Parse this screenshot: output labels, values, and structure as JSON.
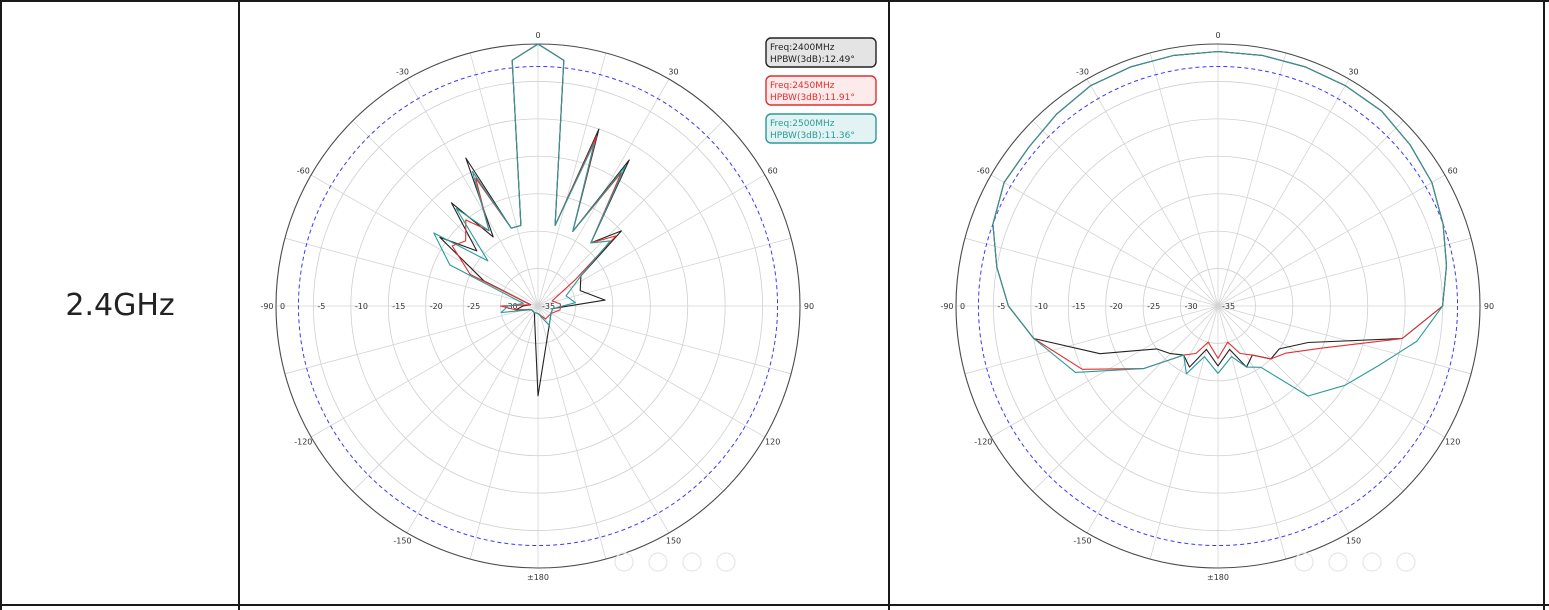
{
  "row_label": "2.4GHz",
  "colors": {
    "s2400": "#222222",
    "s2450": "#e03030",
    "s2500": "#2a9a9a",
    "ref": "#3a3aff",
    "legend_bg_2400": "#e4e4e4",
    "legend_bg_2450": "#fdeaea",
    "legend_bg_2500": "#e3f3f3"
  },
  "chart_data": [
    {
      "type": "polar",
      "angle_labels": [
        "0",
        "30",
        "60",
        "90",
        "120",
        "150",
        "±180",
        "-150",
        "-120",
        "-90",
        "-60",
        "-30"
      ],
      "radial_ticks": [
        "0",
        "-5",
        "-10",
        "-15",
        "-20",
        "-25",
        "-30",
        "-35"
      ],
      "rlim": [
        -35,
        0
      ],
      "reference_level": -3,
      "legend": [
        {
          "line1": "Freq:2400MHz",
          "line2": "HPBW(3dB):12.49°",
          "color_key": "s2400"
        },
        {
          "line1": "Freq:2450MHz",
          "line2": "HPBW(3dB):11.91°",
          "color_key": "s2450"
        },
        {
          "line1": "Freq:2500MHz",
          "line2": "HPBW(3dB):11.36°",
          "color_key": "s2500"
        }
      ],
      "series": [
        {
          "color_key": "s2400",
          "points": [
            [
              -180,
              -23
            ],
            [
              -150,
              -34
            ],
            [
              -120,
              -34
            ],
            [
              -100,
              -32
            ],
            [
              -90,
              -33
            ],
            [
              -80,
              -34
            ],
            [
              -65,
              -27
            ],
            [
              -55,
              -19
            ],
            [
              -48,
              -24
            ],
            [
              -40,
              -17
            ],
            [
              -33,
              -24
            ],
            [
              -26,
              -13
            ],
            [
              -19,
              -24
            ],
            [
              -12,
              -24
            ],
            [
              -6,
              -2
            ],
            [
              0,
              0
            ],
            [
              6,
              -2
            ],
            [
              12,
              -24
            ],
            [
              19,
              -10
            ],
            [
              25,
              -24
            ],
            [
              32,
              -12
            ],
            [
              40,
              -24
            ],
            [
              48,
              -20
            ],
            [
              55,
              -28
            ],
            [
              70,
              -29
            ],
            [
              85,
              -26
            ],
            [
              100,
              -33
            ],
            [
              120,
              -33
            ],
            [
              150,
              -32
            ],
            [
              180,
              -23
            ]
          ]
        },
        {
          "color_key": "s2450",
          "points": [
            [
              -180,
              -34
            ],
            [
              -150,
              -34
            ],
            [
              -120,
              -34
            ],
            [
              -100,
              -32
            ],
            [
              -90,
              -30
            ],
            [
              -80,
              -34
            ],
            [
              -65,
              -25
            ],
            [
              -55,
              -21
            ],
            [
              -48,
              -22
            ],
            [
              -40,
              -20
            ],
            [
              -33,
              -23
            ],
            [
              -26,
              -16
            ],
            [
              -19,
              -24
            ],
            [
              -12,
              -24
            ],
            [
              -6,
              -2
            ],
            [
              0,
              0
            ],
            [
              6,
              -2
            ],
            [
              12,
              -24
            ],
            [
              19,
              -11
            ],
            [
              25,
              -24
            ],
            [
              32,
              -14
            ],
            [
              40,
              -24
            ],
            [
              48,
              -21
            ],
            [
              55,
              -29
            ],
            [
              70,
              -33
            ],
            [
              85,
              -32
            ],
            [
              100,
              -32
            ],
            [
              120,
              -33
            ],
            [
              150,
              -33
            ],
            [
              180,
              -34
            ]
          ]
        },
        {
          "color_key": "s2500",
          "points": [
            [
              -180,
              -34
            ],
            [
              -150,
              -34
            ],
            [
              -120,
              -34
            ],
            [
              -100,
              -30
            ],
            [
              -90,
              -31
            ],
            [
              -80,
              -33
            ],
            [
              -65,
              -22
            ],
            [
              -55,
              -18
            ],
            [
              -48,
              -26
            ],
            [
              -40,
              -18
            ],
            [
              -33,
              -23
            ],
            [
              -26,
              -15
            ],
            [
              -19,
              -24
            ],
            [
              -12,
              -24
            ],
            [
              -6,
              -2
            ],
            [
              0,
              0
            ],
            [
              6,
              -2
            ],
            [
              12,
              -24
            ],
            [
              19,
              -12
            ],
            [
              25,
              -24
            ],
            [
              32,
              -13
            ],
            [
              40,
              -24
            ],
            [
              48,
              -22
            ],
            [
              55,
              -28
            ],
            [
              70,
              -31
            ],
            [
              85,
              -30
            ],
            [
              100,
              -33
            ],
            [
              120,
              -33
            ],
            [
              150,
              -32
            ],
            [
              180,
              -34
            ]
          ]
        }
      ]
    },
    {
      "type": "polar",
      "angle_labels": [
        "0",
        "30",
        "60",
        "90",
        "120",
        "150",
        "±180",
        "-150",
        "-120",
        "-90",
        "-60",
        "-30"
      ],
      "radial_ticks": [
        "0",
        "-5",
        "-10",
        "-15",
        "-20",
        "-25",
        "-30",
        "-35"
      ],
      "rlim": [
        -35,
        0
      ],
      "reference_level": -3,
      "series": [
        {
          "color_key": "s2400",
          "points": [
            [
              -180,
              -27
            ],
            [
              -165,
              -29
            ],
            [
              -155,
              -26
            ],
            [
              -145,
              -27
            ],
            [
              -135,
              -26
            ],
            [
              -125,
              -25
            ],
            [
              -112,
              -18
            ],
            [
              -100,
              -10
            ],
            [
              -90,
              -7
            ],
            [
              -80,
              -5
            ],
            [
              -70,
              -3
            ],
            [
              -60,
              -2
            ],
            [
              -50,
              -2
            ],
            [
              -40,
              -1.5
            ],
            [
              -30,
              -1
            ],
            [
              -20,
              -1
            ],
            [
              -10,
              -1
            ],
            [
              0,
              -1
            ],
            [
              10,
              -1
            ],
            [
              20,
              -1
            ],
            [
              30,
              -1
            ],
            [
              40,
              -1
            ],
            [
              50,
              -1.5
            ],
            [
              60,
              -2
            ],
            [
              70,
              -3
            ],
            [
              80,
              -4
            ],
            [
              90,
              -5
            ],
            [
              100,
              -10
            ],
            [
              112,
              -22
            ],
            [
              125,
              -25
            ],
            [
              135,
              -25
            ],
            [
              145,
              -27
            ],
            [
              155,
              -26
            ],
            [
              165,
              -29
            ],
            [
              180,
              -27
            ]
          ]
        },
        {
          "color_key": "s2450",
          "points": [
            [
              -180,
              -28
            ],
            [
              -165,
              -30
            ],
            [
              -155,
              -28
            ],
            [
              -145,
              -27
            ],
            [
              -130,
              -22
            ],
            [
              -115,
              -15
            ],
            [
              -100,
              -10
            ],
            [
              -90,
              -7
            ],
            [
              -80,
              -5
            ],
            [
              -70,
              -3
            ],
            [
              -60,
              -2
            ],
            [
              -50,
              -2
            ],
            [
              -40,
              -1.5
            ],
            [
              -30,
              -1
            ],
            [
              -20,
              -1
            ],
            [
              -10,
              -1
            ],
            [
              0,
              -1
            ],
            [
              10,
              -1
            ],
            [
              20,
              -1
            ],
            [
              30,
              -1
            ],
            [
              40,
              -1
            ],
            [
              50,
              -1.5
            ],
            [
              60,
              -2
            ],
            [
              70,
              -3
            ],
            [
              80,
              -4
            ],
            [
              90,
              -5
            ],
            [
              100,
              -10
            ],
            [
              112,
              -20
            ],
            [
              125,
              -24
            ],
            [
              135,
              -25
            ],
            [
              145,
              -27
            ],
            [
              155,
              -28
            ],
            [
              165,
              -30
            ],
            [
              180,
              -28
            ]
          ]
        },
        {
          "color_key": "s2500",
          "points": [
            [
              -180,
              -26
            ],
            [
              -165,
              -28
            ],
            [
              -155,
              -25
            ],
            [
              -145,
              -27
            ],
            [
              -130,
              -22
            ],
            [
              -115,
              -14
            ],
            [
              -100,
              -10
            ],
            [
              -90,
              -7
            ],
            [
              -80,
              -5
            ],
            [
              -70,
              -3
            ],
            [
              -60,
              -2
            ],
            [
              -50,
              -2
            ],
            [
              -40,
              -1.5
            ],
            [
              -30,
              -1
            ],
            [
              -20,
              -1
            ],
            [
              -10,
              -1
            ],
            [
              0,
              -1
            ],
            [
              10,
              -1
            ],
            [
              20,
              -1
            ],
            [
              30,
              -1
            ],
            [
              40,
              -1
            ],
            [
              50,
              -1.5
            ],
            [
              60,
              -2
            ],
            [
              70,
              -3
            ],
            [
              80,
              -4
            ],
            [
              90,
              -5
            ],
            [
              100,
              -8
            ],
            [
              110,
              -12
            ],
            [
              122,
              -15
            ],
            [
              135,
              -18
            ],
            [
              145,
              -25
            ],
            [
              155,
              -26
            ],
            [
              165,
              -28
            ],
            [
              180,
              -26
            ]
          ]
        }
      ]
    }
  ]
}
